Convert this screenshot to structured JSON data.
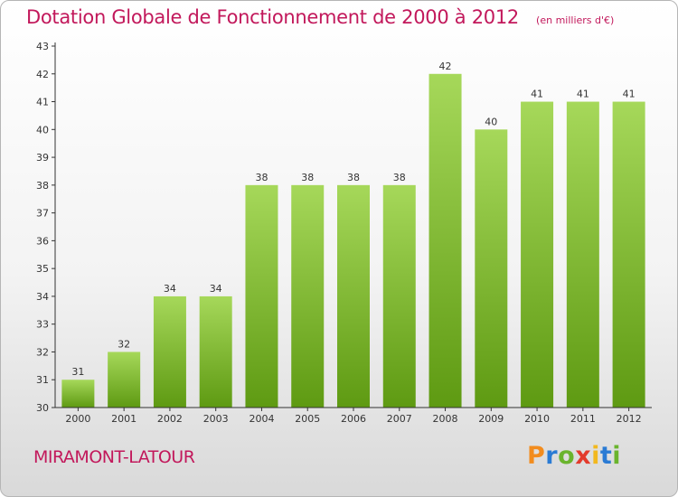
{
  "chart_title": "Dotation Globale de Fonctionnement de 2000 à 2012",
  "chart_subtitle": "(en milliers d'€)",
  "commune": "MIRAMONT-LATOUR",
  "brand": {
    "letters": [
      "P",
      "r",
      "o",
      "x",
      "i",
      "t",
      "i"
    ],
    "colors": [
      "#f28c1e",
      "#2a7bd4",
      "#6ab42d",
      "#e33b2c",
      "#f2b81e",
      "#2a7bd4",
      "#6ab42d"
    ]
  },
  "colors": {
    "title": "#c2185b",
    "bar_top": "#a6d85a",
    "bar_bottom": "#5e9a12",
    "axis": "#333333"
  },
  "chart_data": {
    "type": "bar",
    "categories": [
      "2000",
      "2001",
      "2002",
      "2003",
      "2004",
      "2005",
      "2006",
      "2007",
      "2008",
      "2009",
      "2010",
      "2011",
      "2012"
    ],
    "values": [
      31,
      32,
      34,
      34,
      38,
      38,
      38,
      38,
      42,
      40,
      41,
      41,
      41
    ],
    "data_labels": [
      "31",
      "32",
      "34",
      "34",
      "38",
      "38",
      "38",
      "38",
      "42",
      "40",
      "41",
      "41",
      "41"
    ],
    "yticks": [
      "30",
      "31",
      "32",
      "33",
      "34",
      "35",
      "36",
      "37",
      "38",
      "39",
      "40",
      "41",
      "42",
      "43"
    ],
    "ylim": [
      30,
      43
    ],
    "grid": false,
    "xlabel": "",
    "ylabel": ""
  }
}
